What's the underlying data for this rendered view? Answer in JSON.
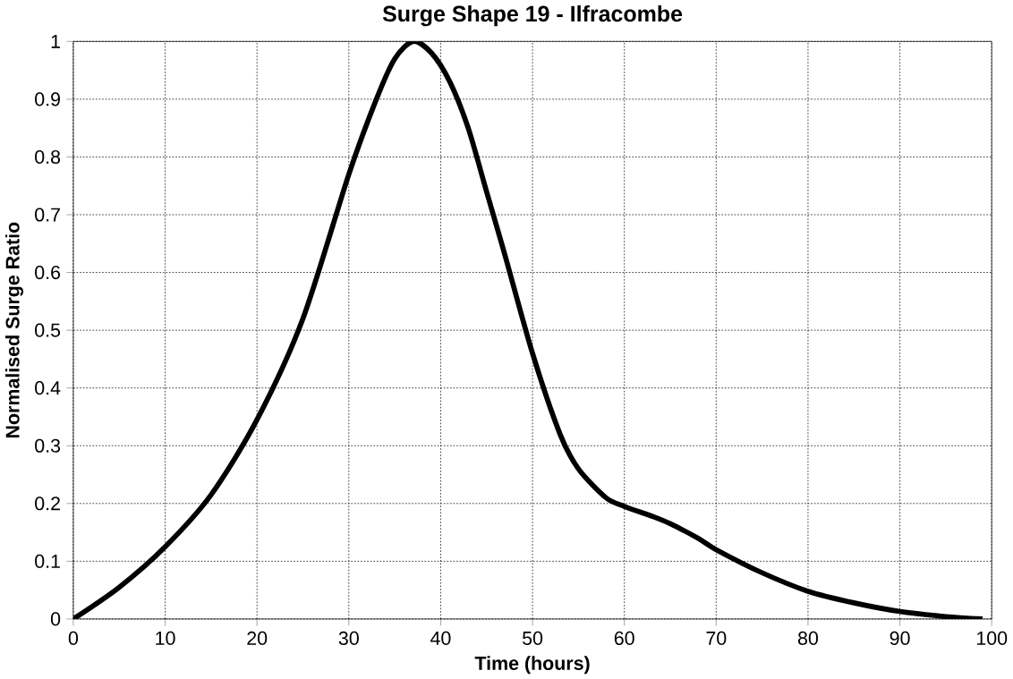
{
  "chart_data": {
    "type": "line",
    "title": "Surge Shape 19 - Ilfracombe",
    "xlabel": "Time (hours)",
    "ylabel": "Normalised Surge Ratio",
    "x": [
      0,
      5,
      10,
      15,
      20,
      25,
      30,
      33,
      35,
      37,
      39,
      41,
      43,
      45,
      47,
      50,
      53,
      55,
      58,
      60,
      63,
      65,
      68,
      70,
      75,
      80,
      85,
      90,
      95,
      99
    ],
    "series": [
      {
        "color": "#000000",
        "values": [
          0,
          0.055,
          0.125,
          0.215,
          0.345,
          0.52,
          0.77,
          0.9,
          0.97,
          1.0,
          0.98,
          0.93,
          0.85,
          0.74,
          0.63,
          0.46,
          0.32,
          0.26,
          0.21,
          0.195,
          0.178,
          0.165,
          0.14,
          0.12,
          0.08,
          0.048,
          0.028,
          0.013,
          0.004,
          0.0
        ]
      }
    ],
    "xlim": [
      0,
      100
    ],
    "ylim": [
      0,
      1
    ],
    "xticks": [
      0,
      10,
      20,
      30,
      40,
      50,
      60,
      70,
      80,
      90,
      100
    ],
    "yticks": [
      0,
      0.1,
      0.2,
      0.3,
      0.4,
      0.5,
      0.6,
      0.7,
      0.8,
      0.9,
      1
    ],
    "grid": true,
    "marker": "none",
    "line_style": "solid"
  }
}
